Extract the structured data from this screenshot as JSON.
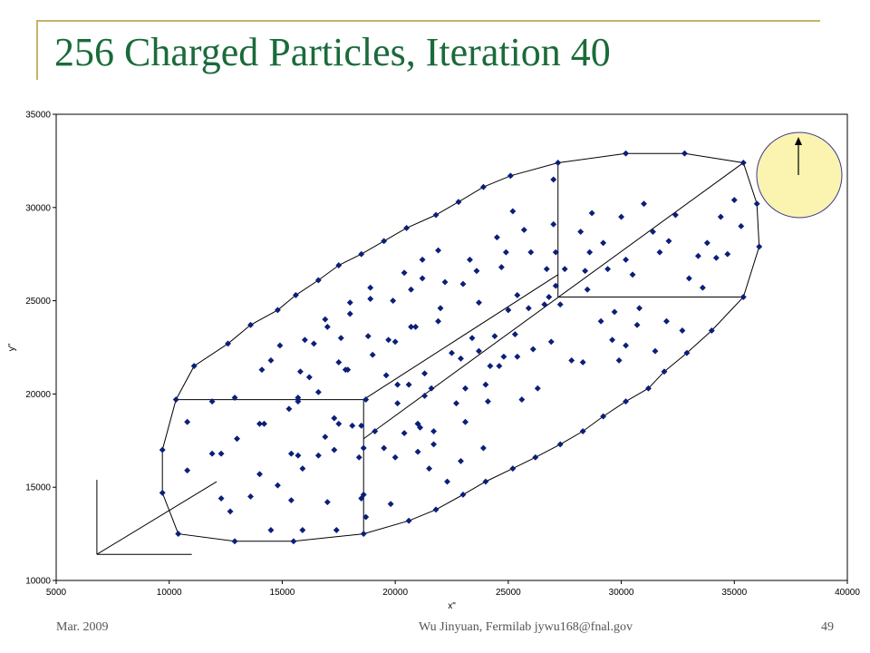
{
  "slide": {
    "title": "256 Charged Particles, Iteration 40",
    "footer_left": "Mar. 2009",
    "footer_center": "Wu Jinyuan, Fermilab jywu168@fnal.gov",
    "footer_right": "49"
  },
  "colors": {
    "title": "#1a6b3a",
    "accent_bar": "#c4b36a",
    "marker": "#0a1f7a",
    "circle_fill": "#fbf3b0",
    "circle_stroke": "#3a3a8a"
  },
  "chart_data": {
    "type": "scatter",
    "title": "",
    "xlabel": "x\"",
    "ylabel": "y\"",
    "xlim": [
      5000,
      40000
    ],
    "ylim": [
      10000,
      35000
    ],
    "xticks": [
      "5000",
      "10000",
      "15000",
      "20000",
      "25000",
      "30000",
      "35000",
      "40000"
    ],
    "yticks": [
      "10000",
      "15000",
      "20000",
      "25000",
      "30000",
      "35000"
    ],
    "grid": false,
    "boundary_points": [
      [
        27200,
        32400
      ],
      [
        30200,
        32900
      ],
      [
        32800,
        32900
      ],
      [
        35400,
        32400
      ],
      [
        36000,
        30200
      ],
      [
        36100,
        27900
      ],
      [
        35400,
        25200
      ],
      [
        34000,
        23400
      ],
      [
        32900,
        22200
      ],
      [
        31900,
        21200
      ],
      [
        31200,
        20300
      ],
      [
        30200,
        19600
      ],
      [
        29200,
        18800
      ],
      [
        28300,
        18000
      ],
      [
        27300,
        17300
      ],
      [
        26200,
        16600
      ],
      [
        25200,
        16000
      ],
      [
        24000,
        15300
      ],
      [
        23000,
        14600
      ],
      [
        21800,
        13800
      ],
      [
        20600,
        13200
      ],
      [
        18600,
        12500
      ],
      [
        15500,
        12100
      ],
      [
        12900,
        12100
      ],
      [
        10400,
        12500
      ],
      [
        9700,
        14700
      ],
      [
        9700,
        17000
      ],
      [
        10300,
        19700
      ],
      [
        11100,
        21500
      ],
      [
        12600,
        22700
      ],
      [
        13600,
        23700
      ],
      [
        14800,
        24500
      ],
      [
        15600,
        25300
      ],
      [
        16600,
        26100
      ],
      [
        17500,
        26900
      ],
      [
        18500,
        27500
      ],
      [
        19500,
        28200
      ],
      [
        20500,
        28900
      ],
      [
        21800,
        29600
      ],
      [
        22800,
        30300
      ],
      [
        23900,
        31100
      ],
      [
        25100,
        31700
      ]
    ],
    "interior_points": [
      [
        10800,
        18500
      ],
      [
        10800,
        15900
      ],
      [
        11900,
        19600
      ],
      [
        11900,
        16800
      ],
      [
        12300,
        16800
      ],
      [
        12300,
        14400
      ],
      [
        12700,
        13700
      ],
      [
        12900,
        19800
      ],
      [
        13000,
        17600
      ],
      [
        13600,
        14500
      ],
      [
        14000,
        18400
      ],
      [
        14000,
        15700
      ],
      [
        14100,
        21300
      ],
      [
        14200,
        18400
      ],
      [
        14500,
        12700
      ],
      [
        14500,
        21800
      ],
      [
        14800,
        15100
      ],
      [
        14900,
        22600
      ],
      [
        15300,
        19200
      ],
      [
        15400,
        16800
      ],
      [
        15400,
        14300
      ],
      [
        15700,
        19800
      ],
      [
        15700,
        16700
      ],
      [
        15700,
        19600
      ],
      [
        15800,
        21200
      ],
      [
        15900,
        12700
      ],
      [
        15900,
        16000
      ],
      [
        16000,
        22900
      ],
      [
        16200,
        20900
      ],
      [
        16400,
        22700
      ],
      [
        16600,
        20100
      ],
      [
        16600,
        16700
      ],
      [
        16900,
        24000
      ],
      [
        16900,
        17700
      ],
      [
        17000,
        14200
      ],
      [
        17000,
        23600
      ],
      [
        17300,
        18700
      ],
      [
        17300,
        17000
      ],
      [
        17400,
        12700
      ],
      [
        17500,
        18400
      ],
      [
        17500,
        21700
      ],
      [
        17600,
        23000
      ],
      [
        17800,
        21300
      ],
      [
        17900,
        21300
      ],
      [
        18000,
        24900
      ],
      [
        18000,
        24300
      ],
      [
        18100,
        18300
      ],
      [
        18400,
        16600
      ],
      [
        18500,
        14400
      ],
      [
        18500,
        18300
      ],
      [
        18600,
        14600
      ],
      [
        18600,
        17100
      ],
      [
        18700,
        13400
      ],
      [
        18700,
        19700
      ],
      [
        18800,
        23100
      ],
      [
        18900,
        25100
      ],
      [
        18900,
        25700
      ],
      [
        19000,
        22100
      ],
      [
        19100,
        18000
      ],
      [
        19500,
        17100
      ],
      [
        19600,
        21000
      ],
      [
        19700,
        22900
      ],
      [
        19800,
        14100
      ],
      [
        19900,
        25000
      ],
      [
        20000,
        16600
      ],
      [
        20000,
        22800
      ],
      [
        20100,
        20500
      ],
      [
        20100,
        19500
      ],
      [
        20400,
        17900
      ],
      [
        20400,
        26500
      ],
      [
        20600,
        20500
      ],
      [
        20700,
        23600
      ],
      [
        20700,
        25600
      ],
      [
        20900,
        23600
      ],
      [
        21000,
        18400
      ],
      [
        21000,
        18400
      ],
      [
        21000,
        16900
      ],
      [
        21100,
        18200
      ],
      [
        21200,
        27200
      ],
      [
        21200,
        26200
      ],
      [
        21300,
        21100
      ],
      [
        21300,
        19900
      ],
      [
        21500,
        16000
      ],
      [
        21600,
        20300
      ],
      [
        21700,
        18000
      ],
      [
        21700,
        17300
      ],
      [
        21900,
        27700
      ],
      [
        21900,
        23900
      ],
      [
        22000,
        24600
      ],
      [
        22200,
        26000
      ],
      [
        22300,
        15300
      ],
      [
        22500,
        22200
      ],
      [
        22700,
        19500
      ],
      [
        22900,
        16400
      ],
      [
        22900,
        21900
      ],
      [
        23000,
        25900
      ],
      [
        23100,
        18500
      ],
      [
        23100,
        20300
      ],
      [
        23300,
        27200
      ],
      [
        23400,
        23000
      ],
      [
        23600,
        26600
      ],
      [
        23700,
        24900
      ],
      [
        23700,
        22300
      ],
      [
        23900,
        17100
      ],
      [
        24000,
        20500
      ],
      [
        24100,
        19600
      ],
      [
        24200,
        21500
      ],
      [
        24400,
        23100
      ],
      [
        24500,
        28400
      ],
      [
        24600,
        21500
      ],
      [
        24700,
        26800
      ],
      [
        24800,
        22000
      ],
      [
        24900,
        27600
      ],
      [
        25000,
        24500
      ],
      [
        25200,
        29800
      ],
      [
        25300,
        23200
      ],
      [
        25400,
        25300
      ],
      [
        25400,
        22000
      ],
      [
        25600,
        19700
      ],
      [
        25700,
        28800
      ],
      [
        25900,
        24600
      ],
      [
        26000,
        27600
      ],
      [
        26100,
        22400
      ],
      [
        26300,
        20300
      ],
      [
        26600,
        24800
      ],
      [
        26700,
        26700
      ],
      [
        26800,
        25200
      ],
      [
        26900,
        22800
      ],
      [
        27000,
        29100
      ],
      [
        27000,
        31500
      ],
      [
        27100,
        25800
      ],
      [
        27100,
        27600
      ],
      [
        27300,
        24800
      ],
      [
        27500,
        26700
      ],
      [
        27800,
        21800
      ],
      [
        28200,
        28700
      ],
      [
        28300,
        21700
      ],
      [
        28400,
        26600
      ],
      [
        28500,
        25600
      ],
      [
        28600,
        27600
      ],
      [
        28700,
        29700
      ],
      [
        29100,
        23900
      ],
      [
        29200,
        28100
      ],
      [
        29400,
        26700
      ],
      [
        29600,
        22900
      ],
      [
        29700,
        24400
      ],
      [
        29900,
        21800
      ],
      [
        30000,
        29500
      ],
      [
        30200,
        27200
      ],
      [
        30200,
        22600
      ],
      [
        30500,
        26400
      ],
      [
        30700,
        23700
      ],
      [
        30800,
        24600
      ],
      [
        31000,
        30200
      ],
      [
        31400,
        28700
      ],
      [
        31500,
        22300
      ],
      [
        31700,
        27600
      ],
      [
        32000,
        23900
      ],
      [
        32100,
        28200
      ],
      [
        32400,
        29600
      ],
      [
        32700,
        23400
      ],
      [
        33000,
        26200
      ],
      [
        33400,
        27400
      ],
      [
        33600,
        25700
      ],
      [
        33800,
        28100
      ],
      [
        34200,
        27300
      ],
      [
        34400,
        29500
      ],
      [
        34700,
        27500
      ],
      [
        35000,
        30400
      ],
      [
        35300,
        29000
      ]
    ],
    "marker": "diamond"
  }
}
